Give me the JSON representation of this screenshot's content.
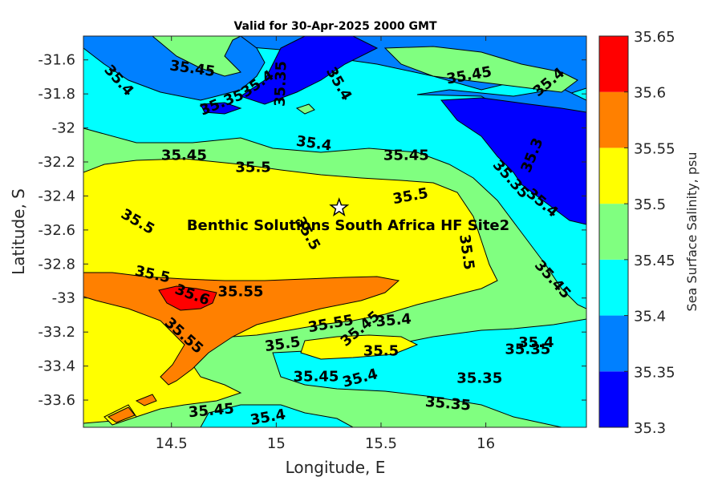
{
  "chart_data": {
    "type": "contourf",
    "title": "Valid for 30-Apr-2025 2000 GMT",
    "xlabel": "Longitude, E",
    "ylabel": "Latitude, S",
    "xlim": [
      14.08,
      16.48
    ],
    "ylim": [
      -33.76,
      -31.46
    ],
    "x_ticks": [
      14.5,
      15,
      15.5,
      16
    ],
    "x_tick_labels": [
      "14.5",
      "15",
      "15.5",
      "16"
    ],
    "y_ticks": [
      -31.6,
      -31.8,
      -32,
      -32.2,
      -32.4,
      -32.6,
      -32.8,
      -33,
      -33.2,
      -33.4,
      -33.6
    ],
    "y_tick_labels": [
      "-31.6",
      "-31.8",
      "-32",
      "-32.2",
      "-32.4",
      "-32.6",
      "-32.8",
      "-33",
      "-33.2",
      "-33.4",
      "-33.6"
    ],
    "colorbar": {
      "label": "Sea Surface Salinity, psu",
      "levels": [
        35.3,
        35.35,
        35.4,
        35.45,
        35.5,
        35.55,
        35.6,
        35.65
      ],
      "level_labels": [
        "35.3",
        "35.35",
        "35.4",
        "35.45",
        "35.5",
        "35.55",
        "35.6",
        "35.65"
      ],
      "colors": [
        "#0000ff",
        "#0080ff",
        "#00ffff",
        "#80ff80",
        "#ffff00",
        "#ff8000",
        "#ff0000"
      ]
    },
    "site": {
      "name": "Benthic Solutions South Africa HF Site2",
      "lon": 15.3,
      "lat": -32.47
    },
    "contour_labels": [
      {
        "text": "35.4",
        "lon": 14.25,
        "lat": -31.72,
        "rot": 48
      },
      {
        "text": "35.45",
        "lon": 14.6,
        "lat": -31.65,
        "rot": 8
      },
      {
        "text": "35.35",
        "lon": 14.74,
        "lat": -31.85,
        "rot": -22
      },
      {
        "text": "35.4",
        "lon": 14.91,
        "lat": -31.74,
        "rot": -35
      },
      {
        "text": "35.35",
        "lon": 15.02,
        "lat": -31.74,
        "rot": -88
      },
      {
        "text": "35.4",
        "lon": 15.3,
        "lat": -31.74,
        "rot": 60
      },
      {
        "text": "35.45",
        "lon": 15.92,
        "lat": -31.69,
        "rot": -10
      },
      {
        "text": "35.4",
        "lon": 16.3,
        "lat": -31.73,
        "rot": -40
      },
      {
        "text": "35.45",
        "lon": 14.56,
        "lat": -32.16,
        "rot": 0
      },
      {
        "text": "35.4",
        "lon": 15.18,
        "lat": -32.09,
        "rot": 8
      },
      {
        "text": "35.45",
        "lon": 15.62,
        "lat": -32.16,
        "rot": 0
      },
      {
        "text": "35.5",
        "lon": 14.89,
        "lat": -32.23,
        "rot": 0
      },
      {
        "text": "35.5",
        "lon": 15.64,
        "lat": -32.4,
        "rot": -10
      },
      {
        "text": "35.3",
        "lon": 16.22,
        "lat": -32.16,
        "rot": -68
      },
      {
        "text": "35.35",
        "lon": 16.12,
        "lat": -32.3,
        "rot": 48
      },
      {
        "text": "35.4",
        "lon": 16.27,
        "lat": -32.44,
        "rot": 40
      },
      {
        "text": "35.5",
        "lon": 14.34,
        "lat": -32.55,
        "rot": 30
      },
      {
        "text": "35.5",
        "lon": 15.15,
        "lat": -32.62,
        "rot": 60
      },
      {
        "text": "35.5",
        "lon": 15.91,
        "lat": -32.73,
        "rot": 82
      },
      {
        "text": "35.45",
        "lon": 16.32,
        "lat": -32.89,
        "rot": 48
      },
      {
        "text": "35.5",
        "lon": 14.41,
        "lat": -32.86,
        "rot": 12
      },
      {
        "text": "35.6",
        "lon": 14.6,
        "lat": -32.98,
        "rot": 20
      },
      {
        "text": "35.55",
        "lon": 14.83,
        "lat": -32.96,
        "rot": 0
      },
      {
        "text": "35.55",
        "lon": 14.56,
        "lat": -33.22,
        "rot": 42
      },
      {
        "text": "35.55",
        "lon": 15.26,
        "lat": -33.15,
        "rot": -10
      },
      {
        "text": "35.45",
        "lon": 15.4,
        "lat": -33.18,
        "rot": -40
      },
      {
        "text": "35.4",
        "lon": 15.56,
        "lat": -33.13,
        "rot": -5
      },
      {
        "text": "35.5",
        "lon": 15.03,
        "lat": -33.27,
        "rot": -8
      },
      {
        "text": "35.5",
        "lon": 15.5,
        "lat": -33.31,
        "rot": 0
      },
      {
        "text": "35.45",
        "lon": 15.19,
        "lat": -33.46,
        "rot": 0
      },
      {
        "text": "35.4",
        "lon": 15.4,
        "lat": -33.47,
        "rot": -15
      },
      {
        "text": "35.4",
        "lon": 16.24,
        "lat": -33.26,
        "rot": 0
      },
      {
        "text": "35.35",
        "lon": 16.2,
        "lat": -33.3,
        "rot": 0
      },
      {
        "text": "35.35",
        "lon": 15.97,
        "lat": -33.47,
        "rot": 0
      },
      {
        "text": "35.35",
        "lon": 15.82,
        "lat": -33.62,
        "rot": 5
      },
      {
        "text": "35.45",
        "lon": 14.69,
        "lat": -33.66,
        "rot": -5
      },
      {
        "text": "35.4",
        "lon": 14.96,
        "lat": -33.7,
        "rot": -10
      }
    ]
  }
}
